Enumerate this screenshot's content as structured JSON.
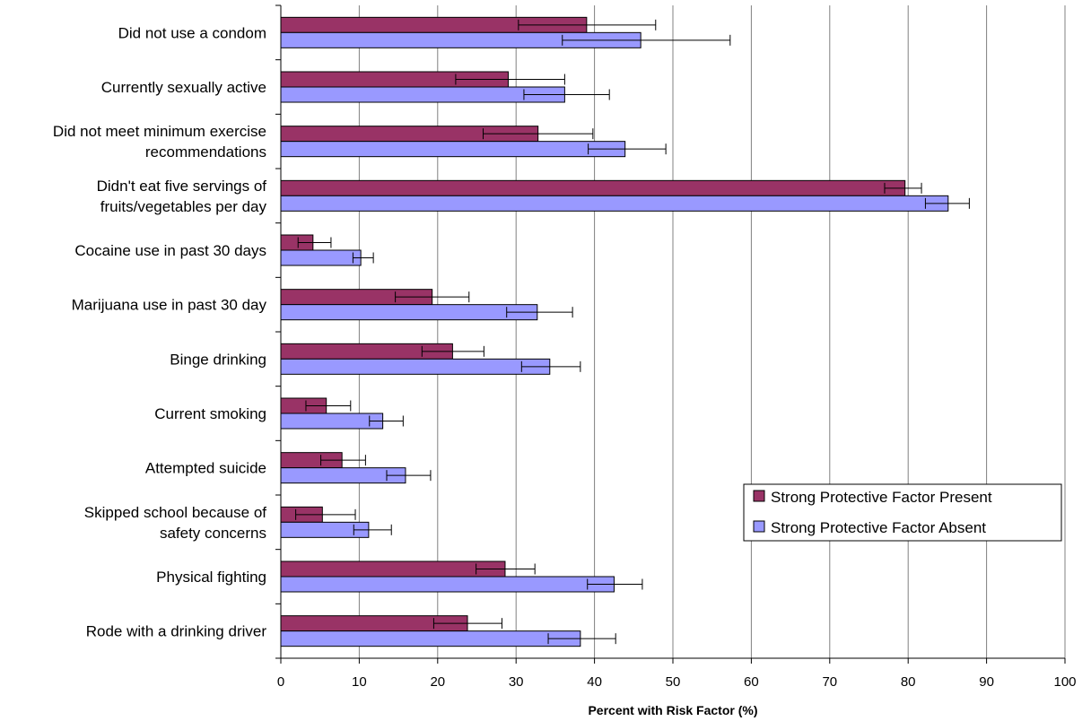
{
  "chart_data": {
    "type": "bar",
    "orientation": "horizontal",
    "title": "",
    "xlabel": "Percent with Risk Factor (%)",
    "ylabel": "",
    "xlim": [
      0,
      100
    ],
    "xticks": [
      0,
      10,
      20,
      30,
      40,
      50,
      60,
      70,
      80,
      90,
      100
    ],
    "grid": "vertical",
    "legend_position": "right",
    "categories": [
      [
        "Did not use a condom"
      ],
      [
        "Currently sexually active"
      ],
      [
        "Did not meet minimum exercise",
        "recommendations"
      ],
      [
        "Didn't eat five servings of",
        "fruits/vegetables per day"
      ],
      [
        "Cocaine use in past 30 days"
      ],
      [
        "Marijuana use in past 30 day"
      ],
      [
        "Binge drinking"
      ],
      [
        "Current smoking"
      ],
      [
        "Attempted suicide"
      ],
      [
        "Skipped school because of",
        "safety concerns"
      ],
      [
        "Physical fighting"
      ],
      [
        "Rode with a drinking driver"
      ]
    ],
    "series": [
      {
        "name": "Strong Protective Factor Present",
        "color": "#993366",
        "values": [
          39.0,
          29.0,
          32.8,
          79.6,
          4.1,
          19.3,
          21.9,
          5.8,
          7.8,
          5.3,
          28.6,
          23.8
        ],
        "error_low": [
          30.3,
          22.3,
          25.8,
          77.0,
          2.2,
          14.6,
          18.0,
          3.2,
          5.1,
          1.9,
          24.9,
          19.5
        ],
        "error_high": [
          47.8,
          36.2,
          39.8,
          81.7,
          6.4,
          24.0,
          25.9,
          8.9,
          10.8,
          9.5,
          32.4,
          28.2
        ]
      },
      {
        "name": "Strong Protective Factor Absent",
        "color": "#9999ff",
        "values": [
          45.9,
          36.2,
          43.9,
          85.1,
          10.2,
          32.7,
          34.3,
          13.0,
          15.9,
          11.2,
          42.5,
          38.2
        ],
        "error_low": [
          35.9,
          31.0,
          39.2,
          82.2,
          9.2,
          28.8,
          30.7,
          11.3,
          13.5,
          9.3,
          39.1,
          34.1
        ],
        "error_high": [
          57.3,
          41.9,
          49.1,
          87.8,
          11.8,
          37.2,
          38.2,
          15.6,
          19.1,
          14.1,
          46.1,
          42.7
        ]
      }
    ]
  }
}
